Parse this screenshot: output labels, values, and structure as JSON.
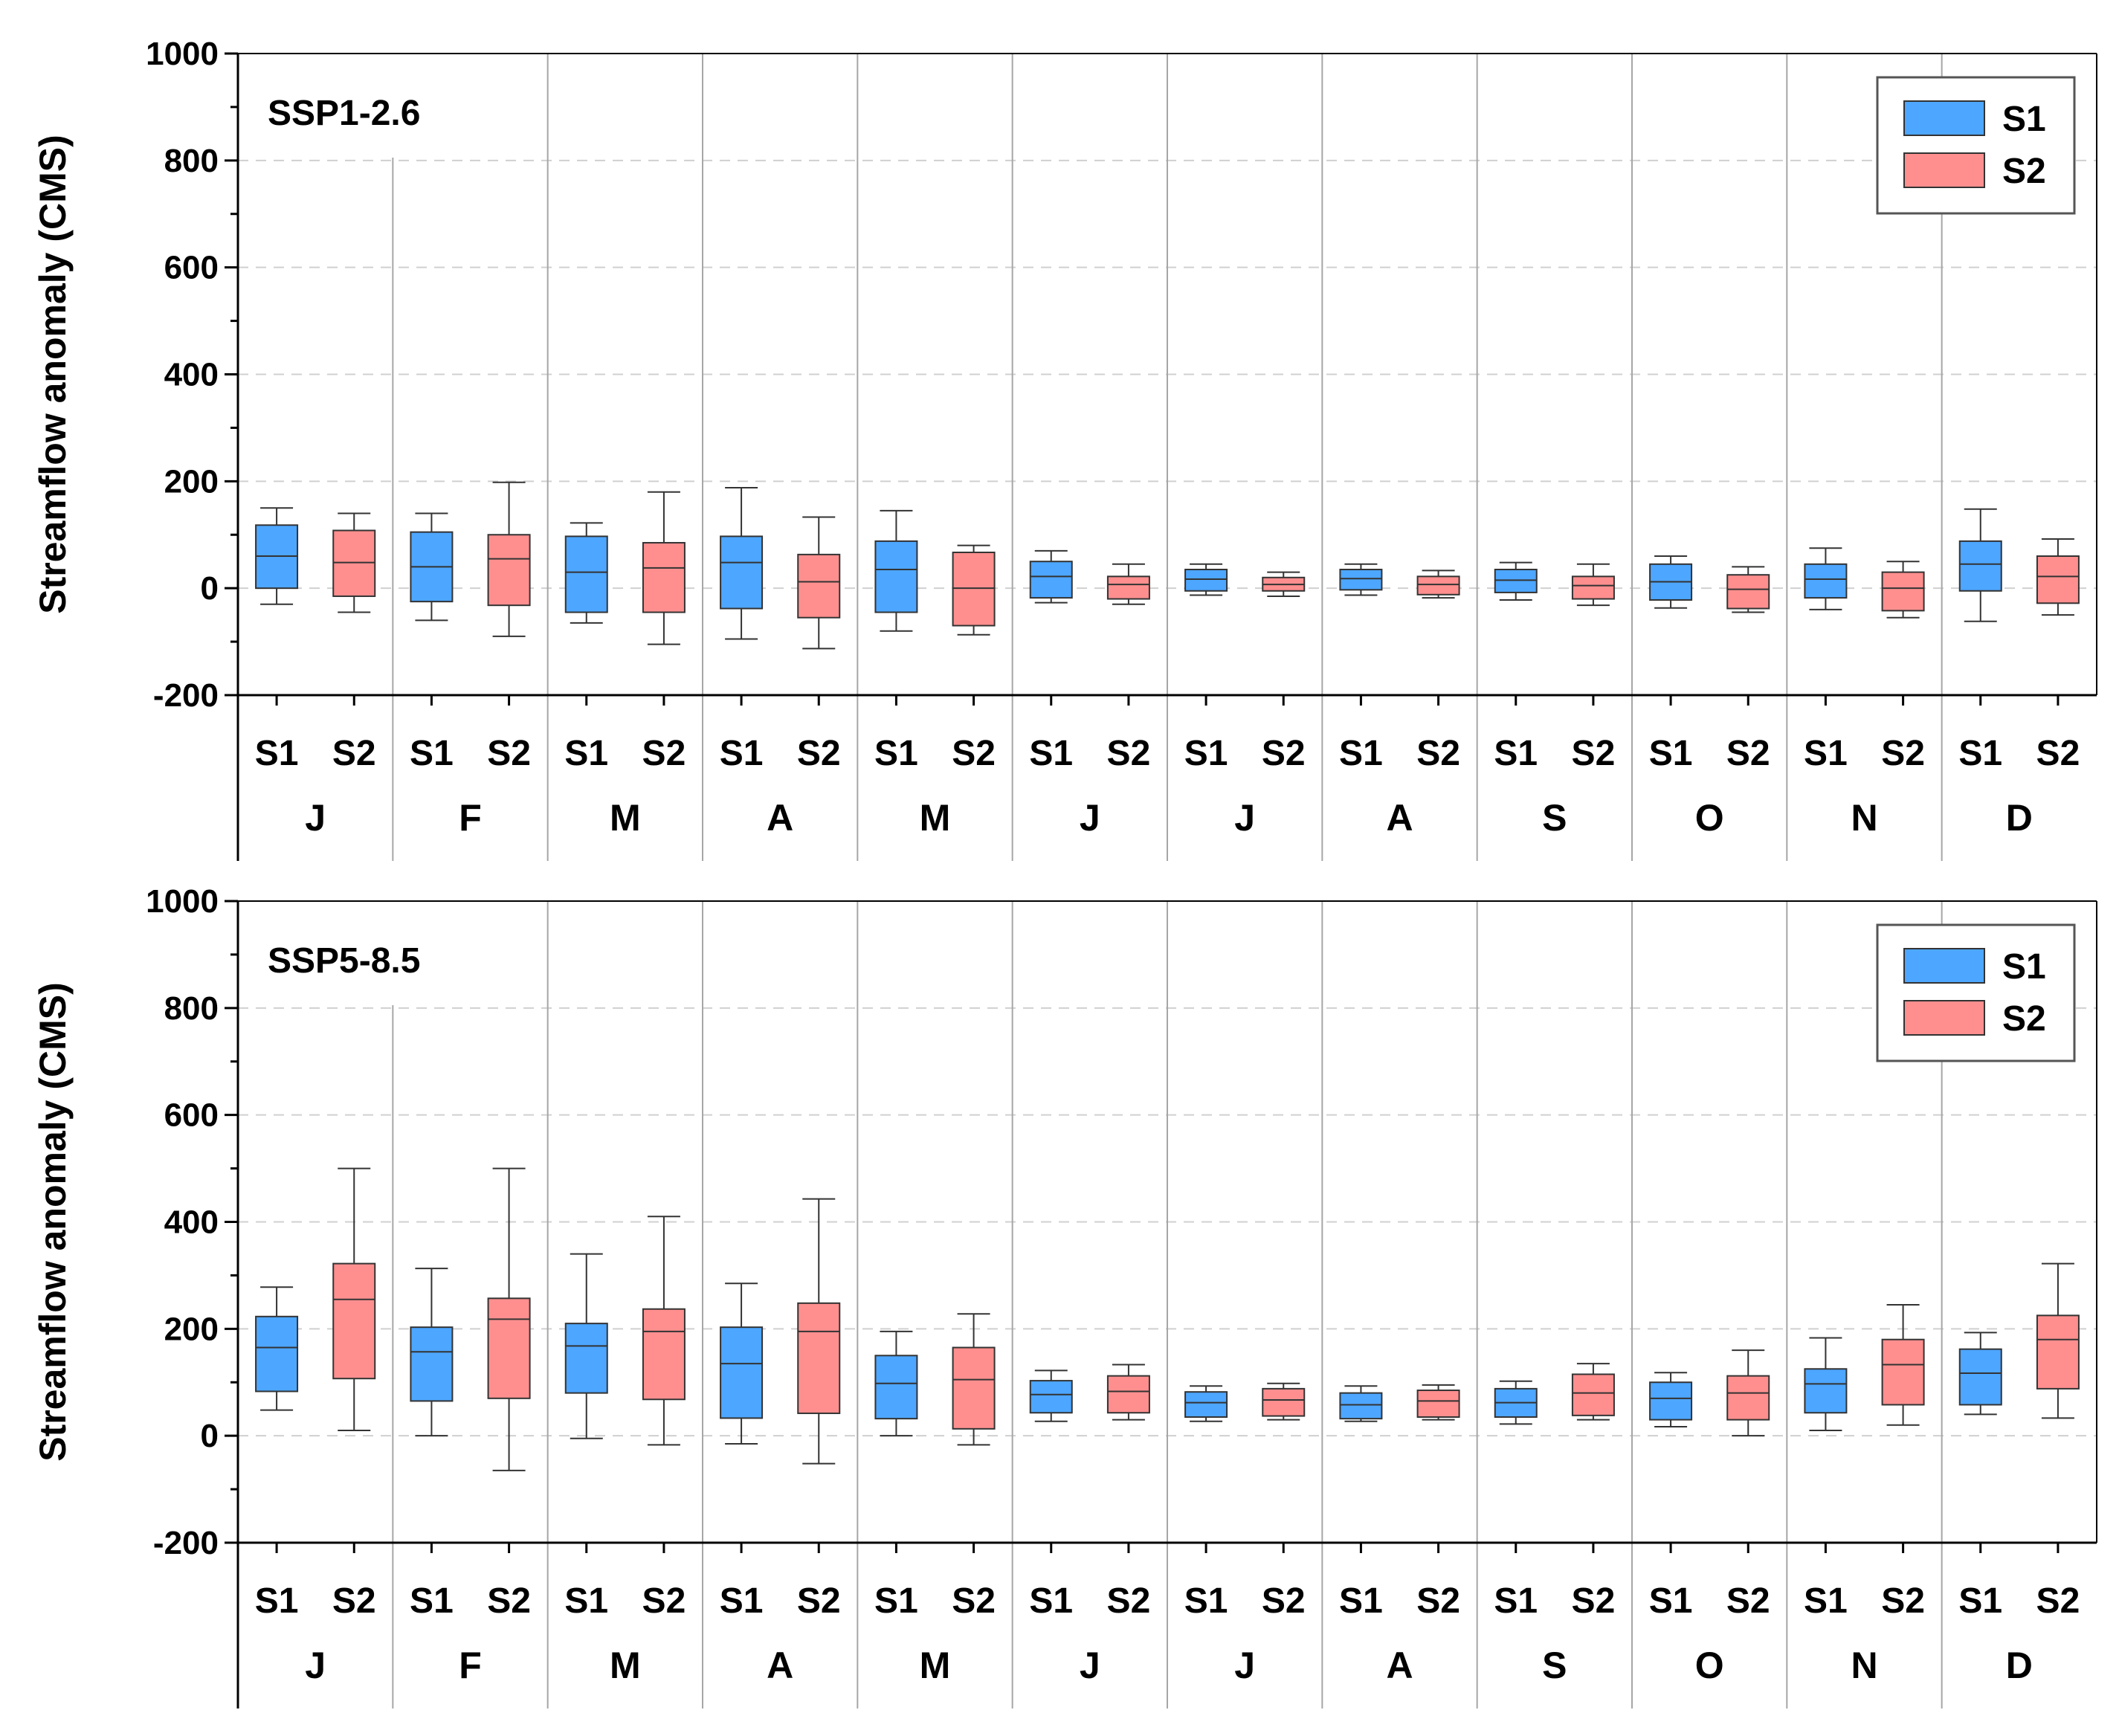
{
  "chart_data": [
    {
      "type": "boxplot",
      "title": "SSP1-2.6",
      "ylabel": "Streamflow anomaly (CMS)",
      "ylim": [
        -200,
        1000
      ],
      "yticks": [
        -200,
        0,
        200,
        400,
        600,
        800,
        1000
      ],
      "grid": "horizontal dashed",
      "legend": {
        "position": "top-right",
        "entries": [
          {
            "name": "S1",
            "color": "#4da6ff"
          },
          {
            "name": "S2",
            "color": "#ff8f8f"
          }
        ]
      },
      "months": [
        "J",
        "F",
        "M",
        "A",
        "M",
        "J",
        "J",
        "A",
        "S",
        "O",
        "N",
        "D"
      ],
      "series": [
        {
          "name": "S1",
          "color": "#4da6ff",
          "boxes": [
            {
              "min": -30,
              "q1": 0,
              "median": 60,
              "q3": 118,
              "max": 150
            },
            {
              "min": -60,
              "q1": -25,
              "median": 40,
              "q3": 105,
              "max": 140
            },
            {
              "min": -65,
              "q1": -45,
              "median": 30,
              "q3": 97,
              "max": 122
            },
            {
              "min": -95,
              "q1": -38,
              "median": 48,
              "q3": 97,
              "max": 188
            },
            {
              "min": -80,
              "q1": -45,
              "median": 35,
              "q3": 88,
              "max": 145
            },
            {
              "min": -27,
              "q1": -18,
              "median": 22,
              "q3": 50,
              "max": 70
            },
            {
              "min": -13,
              "q1": -5,
              "median": 17,
              "q3": 35,
              "max": 45
            },
            {
              "min": -13,
              "q1": -3,
              "median": 18,
              "q3": 35,
              "max": 45
            },
            {
              "min": -22,
              "q1": -8,
              "median": 15,
              "q3": 35,
              "max": 48
            },
            {
              "min": -37,
              "q1": -22,
              "median": 12,
              "q3": 45,
              "max": 60
            },
            {
              "min": -40,
              "q1": -18,
              "median": 17,
              "q3": 45,
              "max": 75
            },
            {
              "min": -62,
              "q1": -5,
              "median": 45,
              "q3": 88,
              "max": 148
            }
          ]
        },
        {
          "name": "S2",
          "color": "#ff8f8f",
          "boxes": [
            {
              "min": -45,
              "q1": -15,
              "median": 48,
              "q3": 108,
              "max": 140
            },
            {
              "min": -90,
              "q1": -32,
              "median": 55,
              "q3": 100,
              "max": 198
            },
            {
              "min": -105,
              "q1": -45,
              "median": 38,
              "q3": 85,
              "max": 180
            },
            {
              "min": -113,
              "q1": -55,
              "median": 12,
              "q3": 63,
              "max": 133
            },
            {
              "min": -87,
              "q1": -70,
              "median": 0,
              "q3": 67,
              "max": 80
            },
            {
              "min": -30,
              "q1": -20,
              "median": 7,
              "q3": 22,
              "max": 45
            },
            {
              "min": -15,
              "q1": -5,
              "median": 7,
              "q3": 20,
              "max": 30
            },
            {
              "min": -18,
              "q1": -12,
              "median": 7,
              "q3": 22,
              "max": 33
            },
            {
              "min": -32,
              "q1": -20,
              "median": 5,
              "q3": 22,
              "max": 45
            },
            {
              "min": -45,
              "q1": -38,
              "median": -2,
              "q3": 25,
              "max": 40
            },
            {
              "min": -55,
              "q1": -42,
              "median": 0,
              "q3": 30,
              "max": 50
            },
            {
              "min": -50,
              "q1": -28,
              "median": 22,
              "q3": 60,
              "max": 92
            }
          ]
        }
      ]
    },
    {
      "type": "boxplot",
      "title": "SSP5-8.5",
      "ylabel": "Streamflow anomaly (CMS)",
      "ylim": [
        -200,
        1000
      ],
      "yticks": [
        -200,
        0,
        200,
        400,
        600,
        800,
        1000
      ],
      "grid": "horizontal dashed",
      "legend": {
        "position": "top-right",
        "entries": [
          {
            "name": "S1",
            "color": "#4da6ff"
          },
          {
            "name": "S2",
            "color": "#ff8f8f"
          }
        ]
      },
      "months": [
        "J",
        "F",
        "M",
        "A",
        "M",
        "J",
        "J",
        "A",
        "S",
        "O",
        "N",
        "D"
      ],
      "series": [
        {
          "name": "S1",
          "color": "#4da6ff",
          "boxes": [
            {
              "min": 48,
              "q1": 83,
              "median": 165,
              "q3": 223,
              "max": 278
            },
            {
              "min": 0,
              "q1": 65,
              "median": 157,
              "q3": 203,
              "max": 313
            },
            {
              "min": -5,
              "q1": 80,
              "median": 168,
              "q3": 210,
              "max": 340
            },
            {
              "min": -15,
              "q1": 33,
              "median": 135,
              "q3": 203,
              "max": 285
            },
            {
              "min": 0,
              "q1": 32,
              "median": 98,
              "q3": 150,
              "max": 195
            },
            {
              "min": 27,
              "q1": 43,
              "median": 77,
              "q3": 103,
              "max": 122
            },
            {
              "min": 27,
              "q1": 35,
              "median": 62,
              "q3": 82,
              "max": 93
            },
            {
              "min": 27,
              "q1": 32,
              "median": 58,
              "q3": 80,
              "max": 93
            },
            {
              "min": 22,
              "q1": 35,
              "median": 62,
              "q3": 88,
              "max": 102
            },
            {
              "min": 17,
              "q1": 30,
              "median": 70,
              "q3": 100,
              "max": 118
            },
            {
              "min": 10,
              "q1": 43,
              "median": 97,
              "q3": 125,
              "max": 183
            },
            {
              "min": 40,
              "q1": 58,
              "median": 117,
              "q3": 162,
              "max": 193
            }
          ]
        },
        {
          "name": "S2",
          "color": "#ff8f8f",
          "boxes": [
            {
              "min": 10,
              "q1": 107,
              "median": 255,
              "q3": 322,
              "max": 500
            },
            {
              "min": -65,
              "q1": 70,
              "median": 218,
              "q3": 257,
              "max": 500
            },
            {
              "min": -17,
              "q1": 68,
              "median": 195,
              "q3": 237,
              "max": 410
            },
            {
              "min": -52,
              "q1": 42,
              "median": 195,
              "q3": 248,
              "max": 443
            },
            {
              "min": -17,
              "q1": 13,
              "median": 105,
              "q3": 165,
              "max": 228
            },
            {
              "min": 30,
              "q1": 43,
              "median": 83,
              "q3": 112,
              "max": 133
            },
            {
              "min": 30,
              "q1": 37,
              "median": 67,
              "q3": 88,
              "max": 98
            },
            {
              "min": 30,
              "q1": 35,
              "median": 65,
              "q3": 85,
              "max": 95
            },
            {
              "min": 30,
              "q1": 38,
              "median": 80,
              "q3": 115,
              "max": 135
            },
            {
              "min": 0,
              "q1": 30,
              "median": 80,
              "q3": 112,
              "max": 160
            },
            {
              "min": 20,
              "q1": 58,
              "median": 133,
              "q3": 180,
              "max": 245
            },
            {
              "min": 33,
              "q1": 88,
              "median": 180,
              "q3": 225,
              "max": 322
            }
          ]
        }
      ]
    }
  ]
}
